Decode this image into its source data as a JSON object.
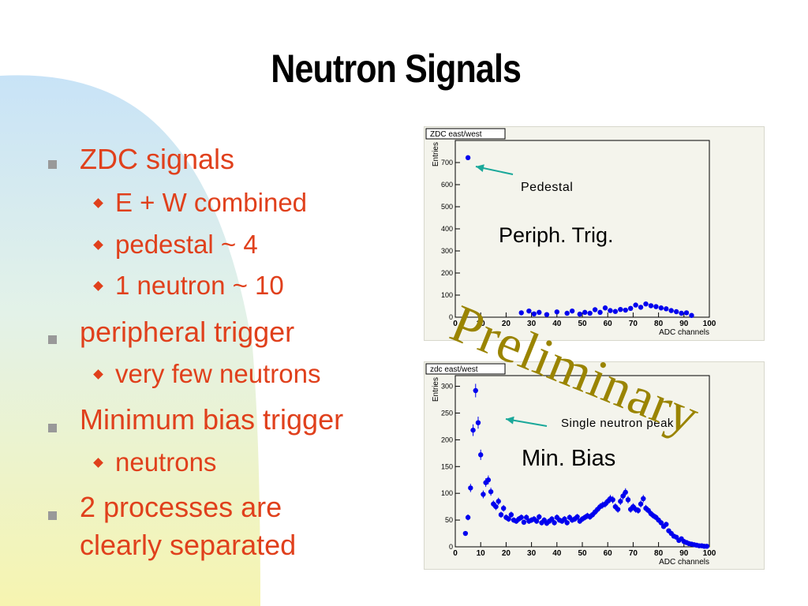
{
  "slide": {
    "title": "Neutron Signals",
    "bullets": [
      {
        "text": "ZDC signals",
        "level": 1
      },
      {
        "text": "E + W combined",
        "level": 2
      },
      {
        "text": "pedestal ~ 4",
        "level": 2
      },
      {
        "text": "1 neutron ~ 10",
        "level": 2
      },
      {
        "text": "peripheral trigger",
        "level": 1
      },
      {
        "text": "very few neutrons",
        "level": 2
      },
      {
        "text": "Minimum bias trigger",
        "level": 1
      },
      {
        "text": "neutrons",
        "level": 2
      },
      {
        "text": "2 processes are",
        "level": 1
      },
      {
        "text": "clearly separated",
        "level": 1
      }
    ],
    "watermark": "Preliminary",
    "colors": {
      "text": "#e0401c",
      "bullet_square": "#999999",
      "marker": "#0000ee",
      "arrow": "#1aa89a",
      "watermark": "#9a8400"
    }
  },
  "annotations": {
    "top_arrow_label": "Pedestal",
    "top_trigger": "Periph.  Trig.",
    "bottom_arrow_label": "Single neutron peak",
    "bottom_trigger": "Min. Bias"
  },
  "chart_data": [
    {
      "type": "scatter",
      "title": "ZDC east/west",
      "xlabel": "ADC channels",
      "ylabel": "Entries",
      "xlim": [
        0,
        100
      ],
      "ylim": [
        0,
        800
      ],
      "xticks": [
        0,
        10,
        20,
        30,
        40,
        50,
        60,
        70,
        80,
        90,
        100
      ],
      "yticks": [
        0,
        100,
        200,
        300,
        400,
        500,
        600,
        700
      ],
      "grid": false,
      "x": [
        5,
        26,
        29,
        31,
        33,
        36,
        40,
        44,
        46,
        49,
        51,
        53,
        55,
        57,
        59,
        61,
        63,
        65,
        67,
        69,
        71,
        73,
        75,
        77,
        79,
        81,
        83,
        85,
        87,
        89,
        91,
        93
      ],
      "y": [
        722,
        20,
        28,
        15,
        22,
        12,
        24,
        18,
        28,
        14,
        22,
        18,
        34,
        22,
        42,
        30,
        26,
        35,
        32,
        40,
        55,
        45,
        60,
        52,
        48,
        42,
        38,
        30,
        25,
        18,
        20,
        8
      ]
    },
    {
      "type": "scatter",
      "title": "zdc east/west",
      "xlabel": "ADC channels",
      "ylabel": "Entries",
      "xlim": [
        0,
        100
      ],
      "ylim": [
        0,
        320
      ],
      "xticks": [
        0,
        10,
        20,
        30,
        40,
        50,
        60,
        70,
        80,
        90,
        100
      ],
      "yticks": [
        0,
        50,
        100,
        150,
        200,
        250,
        300
      ],
      "grid": false,
      "x": [
        4,
        5,
        6,
        7,
        8,
        9,
        10,
        11,
        12,
        13,
        14,
        15,
        16,
        17,
        18,
        19,
        20,
        21,
        22,
        23,
        24,
        25,
        26,
        27,
        28,
        29,
        30,
        31,
        32,
        33,
        34,
        35,
        36,
        37,
        38,
        39,
        40,
        41,
        42,
        43,
        44,
        45,
        46,
        47,
        48,
        49,
        50,
        51,
        52,
        53,
        54,
        55,
        56,
        57,
        58,
        59,
        60,
        61,
        62,
        63,
        64,
        65,
        66,
        67,
        68,
        69,
        70,
        71,
        72,
        73,
        74,
        75,
        76,
        77,
        78,
        79,
        80,
        81,
        82,
        83,
        84,
        85,
        86,
        87,
        88,
        89,
        90,
        91,
        92,
        93,
        94,
        95,
        96,
        97,
        98,
        99
      ],
      "y": [
        25,
        55,
        110,
        218,
        292,
        232,
        172,
        98,
        120,
        125,
        103,
        80,
        75,
        85,
        60,
        72,
        55,
        52,
        60,
        50,
        48,
        52,
        55,
        46,
        55,
        48,
        50,
        52,
        48,
        56,
        45,
        50,
        44,
        48,
        52,
        45,
        55,
        50,
        48,
        52,
        45,
        55,
        50,
        52,
        56,
        48,
        52,
        55,
        58,
        56,
        60,
        65,
        70,
        75,
        78,
        80,
        85,
        90,
        88,
        75,
        70,
        85,
        95,
        102,
        88,
        70,
        75,
        70,
        68,
        80,
        90,
        72,
        68,
        62,
        58,
        55,
        50,
        45,
        38,
        42,
        30,
        25,
        20,
        18,
        12,
        15,
        10,
        8,
        6,
        5,
        4,
        3,
        2,
        2,
        1,
        1
      ]
    }
  ]
}
